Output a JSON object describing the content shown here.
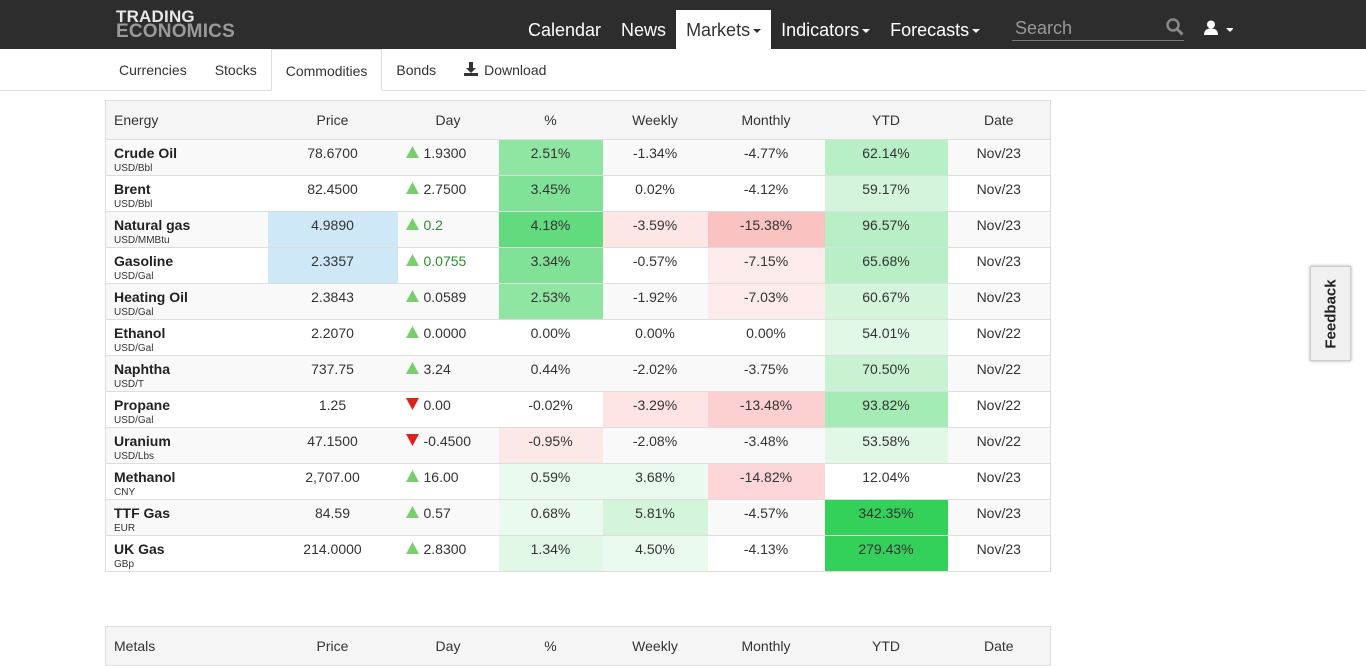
{
  "header": {
    "logo": [
      "TRADING",
      "ECONOMICS"
    ],
    "nav": [
      "Calendar",
      "News",
      "Markets",
      "Indicators",
      "Forecasts"
    ],
    "nav_dropdown": [
      false,
      false,
      true,
      true,
      true
    ],
    "active_nav": 2,
    "search_placeholder": "Search"
  },
  "subnav": {
    "items": [
      "Currencies",
      "Stocks",
      "Commodities",
      "Bonds",
      "Download"
    ],
    "active": 2
  },
  "table": {
    "headers": [
      "Energy",
      "Price",
      "Day",
      "%",
      "Weekly",
      "Monthly",
      "YTD",
      "Date"
    ],
    "rows": [
      {
        "name": "Crude Oil",
        "unit": "USD/Bbl",
        "trend": "up",
        "cells": [
          "78.6700",
          "1.9300",
          "2.51%",
          "-1.34%",
          "-4.77%",
          "62.14%",
          "Nov/23"
        ],
        "backgrounds": [
          null,
          null,
          "#8fe6a3",
          null,
          null,
          "#b9efc6",
          null
        ]
      },
      {
        "name": "Brent",
        "unit": "USD/Bbl",
        "trend": "up",
        "cells": [
          "82.4500",
          "2.7500",
          "3.45%",
          "0.02%",
          "-4.12%",
          "59.17%",
          "Nov/23"
        ],
        "backgrounds": [
          null,
          null,
          "#80e297",
          null,
          null,
          "#d4f5dc",
          null
        ]
      },
      {
        "name": "Natural gas",
        "unit": "USD/MMBtu",
        "trend": "up",
        "day_color": "#2e8b2e",
        "cells": [
          "4.9890",
          "0.2",
          "4.18%",
          "-3.59%",
          "-15.38%",
          "96.57%",
          "Nov/23"
        ],
        "backgrounds": [
          "#cfe8f7",
          null,
          "#62db7e",
          "#fde6e6",
          "#fbc2c2",
          "#b9efc6",
          null
        ]
      },
      {
        "name": "Gasoline",
        "unit": "USD/Gal",
        "trend": "up",
        "day_color": "#2e8b2e",
        "cells": [
          "2.3357",
          "0.0755",
          "3.34%",
          "-0.57%",
          "-7.15%",
          "65.68%",
          "Nov/23"
        ],
        "backgrounds": [
          "#cfe8f7",
          null,
          "#80e297",
          null,
          "#fdeaea",
          "#b9efc6",
          null
        ]
      },
      {
        "name": "Heating Oil",
        "unit": "USD/Gal",
        "trend": "up",
        "cells": [
          "2.3843",
          "0.0589",
          "2.53%",
          "-1.92%",
          "-7.03%",
          "60.67%",
          "Nov/23"
        ],
        "backgrounds": [
          null,
          null,
          "#8fe6a3",
          null,
          "#fdeaea",
          "#d4f5dc",
          null
        ]
      },
      {
        "name": "Ethanol",
        "unit": "USD/Gal",
        "trend": "up",
        "cells": [
          "2.2070",
          "0.0000",
          "0.00%",
          "0.00%",
          "0.00%",
          "54.01%",
          "Nov/22"
        ],
        "backgrounds": [
          null,
          null,
          null,
          null,
          null,
          "#e2f8e7",
          null
        ]
      },
      {
        "name": "Naphtha",
        "unit": "USD/T",
        "trend": "up",
        "cells": [
          "737.75",
          "3.24",
          "0.44%",
          "-2.02%",
          "-3.75%",
          "70.50%",
          "Nov/22"
        ],
        "backgrounds": [
          null,
          null,
          null,
          null,
          null,
          "#c8f2d2",
          null
        ]
      },
      {
        "name": "Propane",
        "unit": "USD/Gal",
        "trend": "down",
        "cells": [
          "1.25",
          "0.00",
          "-0.02%",
          "-3.29%",
          "-13.48%",
          "93.82%",
          "Nov/22"
        ],
        "backgrounds": [
          null,
          null,
          null,
          "#fde3e3",
          "#fcd0d0",
          "#a5ebb6",
          null
        ]
      },
      {
        "name": "Uranium",
        "unit": "USD/Lbs",
        "trend": "down",
        "cells": [
          "47.1500",
          "-0.4500",
          "-0.95%",
          "-2.08%",
          "-3.48%",
          "53.58%",
          "Nov/22"
        ],
        "backgrounds": [
          null,
          null,
          "#fde8e8",
          null,
          null,
          "#e2f8e7",
          null
        ]
      },
      {
        "name": "Methanol",
        "unit": "CNY",
        "trend": "up",
        "cells": [
          "2,707.00",
          "16.00",
          "0.59%",
          "3.68%",
          "-14.82%",
          "12.04%",
          "Nov/23"
        ],
        "backgrounds": [
          null,
          null,
          "#eafaee",
          "#eafaee",
          "#fcd6d6",
          null,
          null
        ]
      },
      {
        "name": "TTF Gas",
        "unit": "EUR",
        "trend": "up",
        "cells": [
          "84.59",
          "0.57",
          "0.68%",
          "5.81%",
          "-4.57%",
          "342.35%",
          "Nov/23"
        ],
        "backgrounds": [
          null,
          null,
          "#eafaee",
          "#d4f5dc",
          null,
          "#33d15a",
          null
        ]
      },
      {
        "name": "UK Gas",
        "unit": "GBp",
        "trend": "up",
        "cells": [
          "214.0000",
          "2.8300",
          "1.34%",
          "4.50%",
          "-4.13%",
          "279.43%",
          "Nov/23"
        ],
        "backgrounds": [
          null,
          null,
          "#e2f8e7",
          "#eafaee",
          null,
          "#33d15a",
          null
        ]
      }
    ]
  },
  "next_table": {
    "headers": [
      "Metals",
      "Price",
      "Day",
      "%",
      "Weekly",
      "Monthly",
      "YTD",
      "Date"
    ]
  },
  "feedback": "Feedback"
}
